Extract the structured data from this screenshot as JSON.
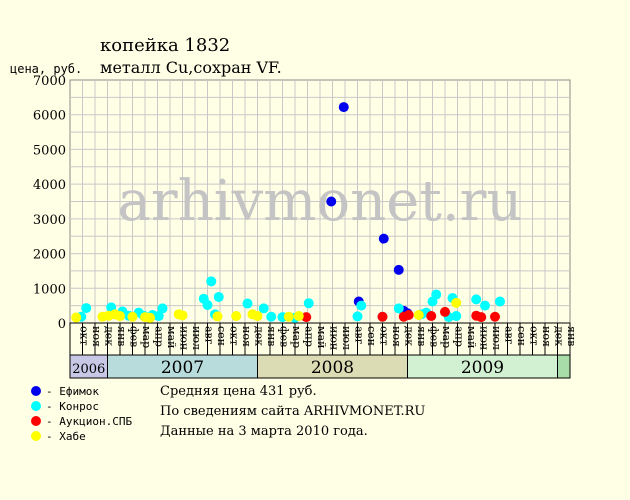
{
  "header": {
    "title": "копейка 1832",
    "subtitle": "металл Cu,сохран VF.",
    "ylabel": "цена, руб."
  },
  "watermark": "arhivmonet.ru",
  "info": {
    "line1": "Средняя цена 431 руб.",
    "line2": "По сведениям сайта ARHIVMONET.RU",
    "line3": "Данные на 3 марта 2010 года."
  },
  "legend": [
    {
      "label": "- Ефимок",
      "color": "#0000ee"
    },
    {
      "label": "- Конрос",
      "color": "#00ffff"
    },
    {
      "label": "- Аукцион.СПБ",
      "color": "#ff0000"
    },
    {
      "label": "- Хабе",
      "color": "#ffff00"
    }
  ],
  "chart_data": {
    "type": "scatter",
    "ylim": [
      0,
      7000
    ],
    "yticks": [
      "0",
      "1000",
      "2000",
      "3000",
      "4000",
      "5000",
      "6000",
      "7000"
    ],
    "grid": true,
    "months": [
      "окт",
      "ноя",
      "дек",
      "янв",
      "фев",
      "мар",
      "апр",
      "май",
      "июн",
      "июл",
      "авг",
      "сен",
      "окт",
      "ноя",
      "дек",
      "янв",
      "фев",
      "мар",
      "апр",
      "май",
      "июн",
      "июл",
      "авг",
      "сен",
      "окт",
      "ноя",
      "дек",
      "янв",
      "фев",
      "мар",
      "апр",
      "май",
      "июн",
      "июл",
      "авг",
      "сен",
      "окт",
      "ноя",
      "дек",
      "янв"
    ],
    "years": [
      {
        "label": "2006",
        "start": 0,
        "count": 3,
        "color": "#c8c8e6"
      },
      {
        "label": "2007",
        "start": 3,
        "count": 12,
        "color": "#b8dcdc"
      },
      {
        "label": "2008",
        "start": 15,
        "count": 12,
        "color": "#dcdcb4"
      },
      {
        "label": "2009",
        "start": 27,
        "count": 12,
        "color": "#d2f0d2"
      },
      {
        "label": "",
        "start": 39,
        "count": 1,
        "color": "#a8dca8"
      }
    ],
    "series": [
      {
        "name": "Ефимок",
        "color": "#0000ee",
        "points": [
          [
            20.9,
            3500
          ],
          [
            21.9,
            6220
          ],
          [
            23.1,
            620
          ],
          [
            25.1,
            2430
          ],
          [
            26.3,
            1530
          ],
          [
            26.7,
            350
          ],
          [
            27.0,
            280
          ]
        ]
      },
      {
        "name": "Конрос",
        "color": "#00ffff",
        "points": [
          [
            0.9,
            180
          ],
          [
            1.3,
            430
          ],
          [
            3.3,
            450
          ],
          [
            4.2,
            330
          ],
          [
            4.7,
            210
          ],
          [
            5.5,
            300
          ],
          [
            5.9,
            210
          ],
          [
            6.6,
            230
          ],
          [
            7.1,
            200
          ],
          [
            7.4,
            420
          ],
          [
            10.7,
            700
          ],
          [
            11.0,
            520
          ],
          [
            11.3,
            1200
          ],
          [
            11.6,
            250
          ],
          [
            11.9,
            750
          ],
          [
            14.2,
            560
          ],
          [
            15.5,
            420
          ],
          [
            16.1,
            180
          ],
          [
            17.0,
            170
          ],
          [
            18.0,
            150
          ],
          [
            19.1,
            570
          ],
          [
            23.0,
            190
          ],
          [
            23.3,
            500
          ],
          [
            25.0,
            180
          ],
          [
            26.3,
            420
          ],
          [
            28.1,
            250
          ],
          [
            28.5,
            300
          ],
          [
            29.0,
            620
          ],
          [
            29.3,
            820
          ],
          [
            30.3,
            170
          ],
          [
            30.6,
            720
          ],
          [
            30.9,
            200
          ],
          [
            32.5,
            680
          ],
          [
            33.2,
            500
          ],
          [
            34.4,
            620
          ]
        ]
      },
      {
        "name": "Аукцион.СПБ",
        "color": "#ff0000",
        "points": [
          [
            18.9,
            170
          ],
          [
            25.0,
            180
          ],
          [
            26.7,
            180
          ],
          [
            27.1,
            230
          ],
          [
            28.9,
            200
          ],
          [
            30.0,
            320
          ],
          [
            32.5,
            210
          ],
          [
            32.9,
            170
          ],
          [
            34.0,
            180
          ]
        ]
      },
      {
        "name": "Хабе",
        "color": "#ffff00",
        "points": [
          [
            0.5,
            160
          ],
          [
            2.6,
            180
          ],
          [
            3.1,
            210
          ],
          [
            3.6,
            250
          ],
          [
            4.0,
            200
          ],
          [
            5.0,
            180
          ],
          [
            6.0,
            170
          ],
          [
            6.4,
            150
          ],
          [
            8.7,
            250
          ],
          [
            9.0,
            220
          ],
          [
            11.8,
            190
          ],
          [
            13.3,
            200
          ],
          [
            14.6,
            250
          ],
          [
            15.0,
            200
          ],
          [
            17.5,
            180
          ],
          [
            18.3,
            200
          ],
          [
            27.9,
            230
          ],
          [
            30.9,
            580
          ]
        ]
      }
    ]
  }
}
